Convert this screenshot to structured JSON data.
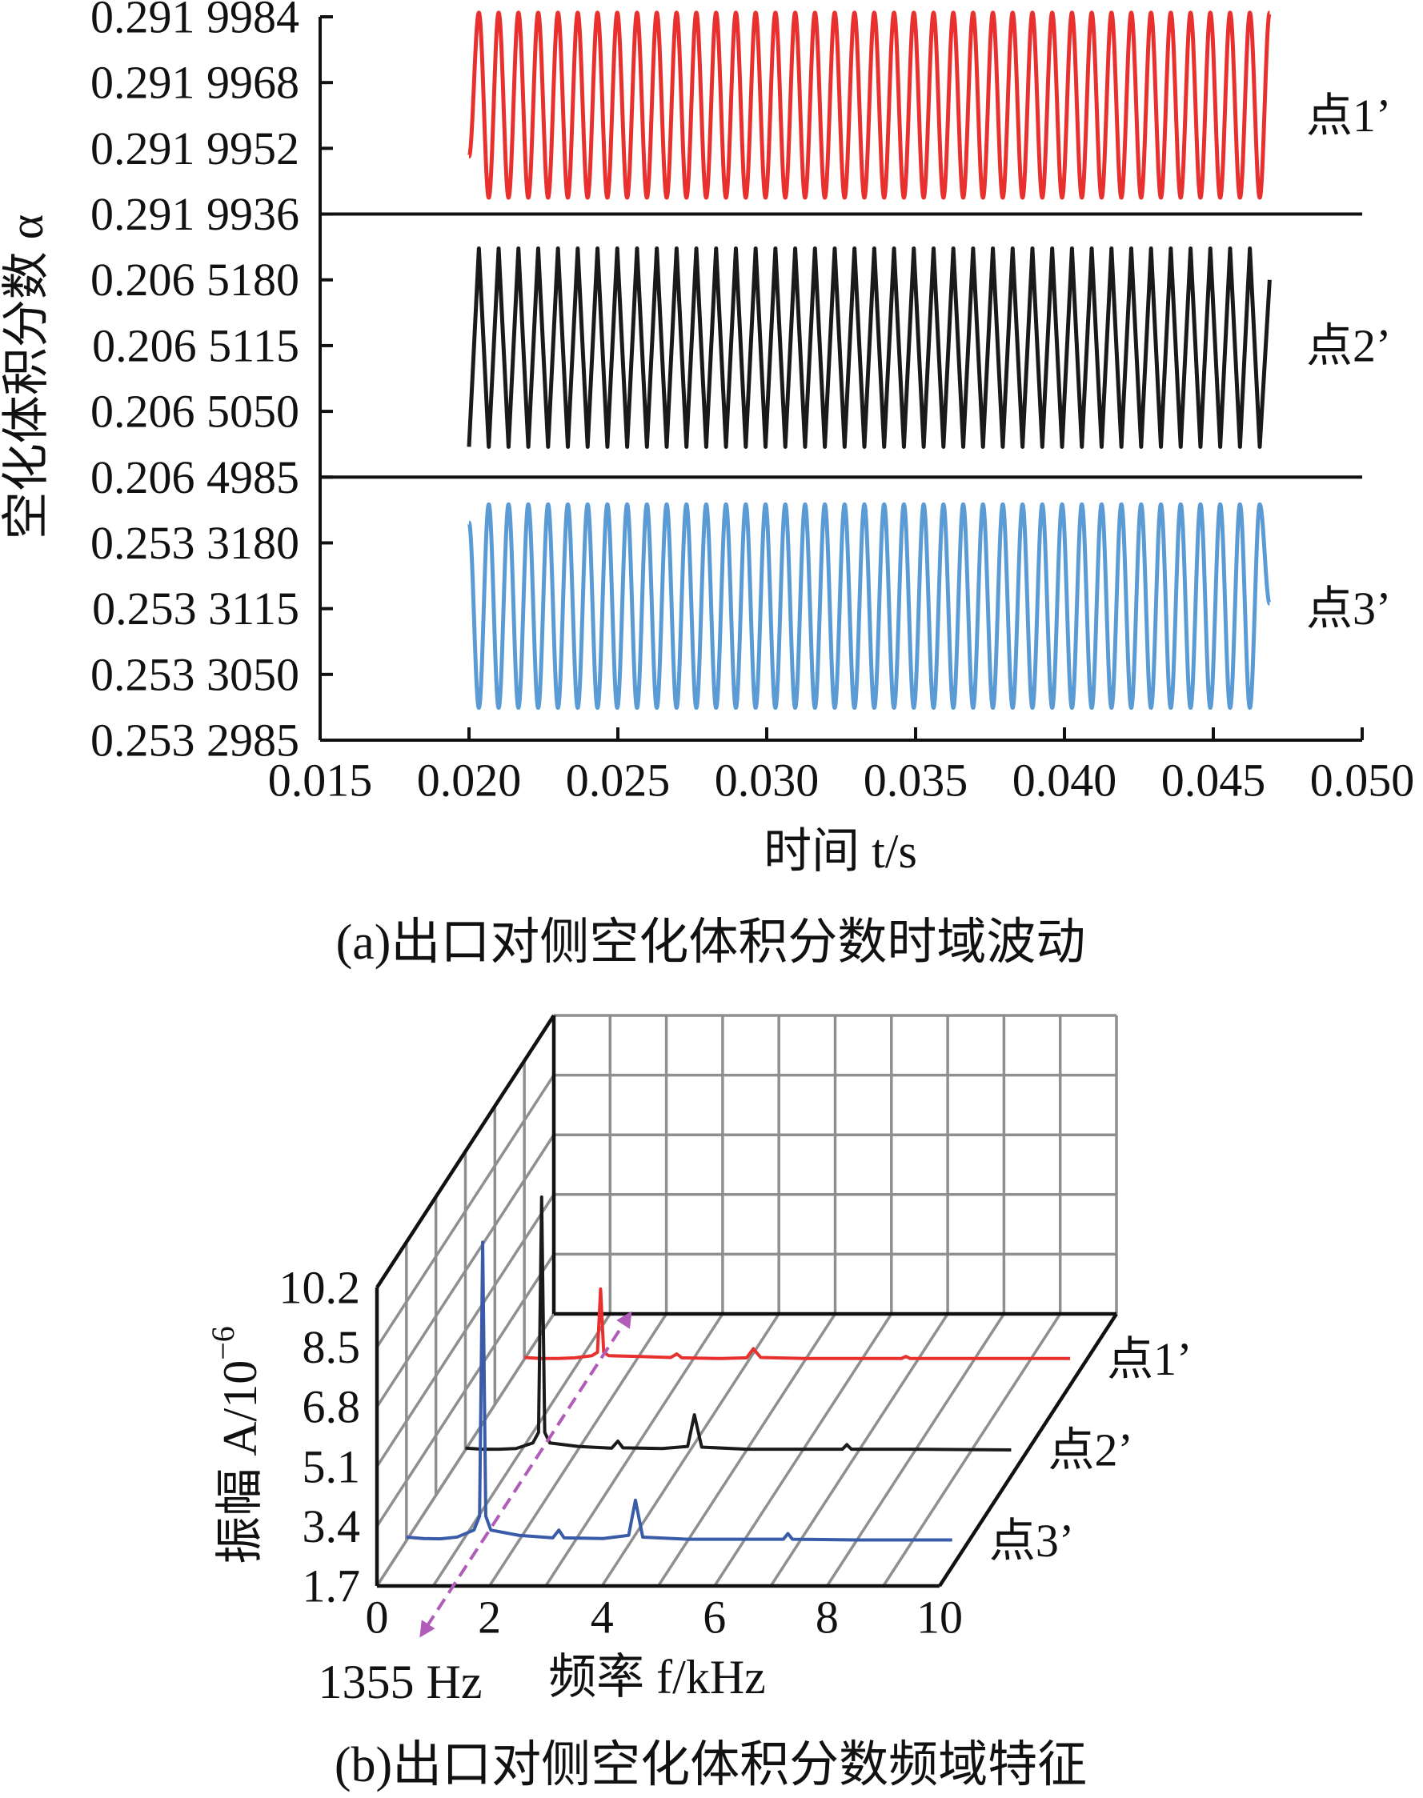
{
  "chart_data": [
    {
      "type": "stacked-line",
      "x": [
        0.02,
        0.020332,
        0.020664,
        0.020996,
        0.021328,
        0.02166,
        0.021992,
        0.022324,
        0.022656,
        0.022988,
        0.02332,
        0.023652,
        0.023984,
        0.024316,
        0.024648,
        0.02498,
        0.025312,
        0.025644,
        0.025976,
        0.026308,
        0.02664,
        0.026972,
        0.027304,
        0.027636,
        0.027968,
        0.0283,
        0.028632,
        0.028964,
        0.029296,
        0.029628,
        0.02996,
        0.030292,
        0.030624,
        0.030956,
        0.031288,
        0.03162,
        0.031952,
        0.032284,
        0.032616,
        0.032948,
        0.03328,
        0.033612,
        0.033944,
        0.034276,
        0.034608,
        0.03494,
        0.035272,
        0.035604,
        0.035936,
        0.036268,
        0.0366,
        0.036932,
        0.037264,
        0.037596,
        0.037928,
        0.03826,
        0.038592,
        0.038924,
        0.039256,
        0.039588,
        0.03992,
        0.040252,
        0.040584,
        0.040916,
        0.041248,
        0.04158,
        0.041912,
        0.042244,
        0.042576,
        0.042908,
        0.04324,
        0.043572,
        0.043904,
        0.044236,
        0.044568,
        0.0449,
        0.045232,
        0.045564,
        0.045896,
        0.046228,
        0.04656,
        0.046892
      ],
      "xlim": [
        0.015,
        0.05
      ],
      "xticks": [
        {
          "value": 0.015,
          "label": "0.015"
        },
        {
          "value": 0.02,
          "label": "0.020"
        },
        {
          "value": 0.025,
          "label": "0.025"
        },
        {
          "value": 0.03,
          "label": "0.030"
        },
        {
          "value": 0.035,
          "label": "0.035"
        },
        {
          "value": 0.04,
          "label": "0.040"
        },
        {
          "value": 0.045,
          "label": "0.045"
        },
        {
          "value": 0.05,
          "label": "0.050"
        }
      ],
      "xlabel": "时间 t/s",
      "ylabel": "空化体积分数 α",
      "caption": "(a)出口对侧空化体积分数时域波动",
      "panels": [
        {
          "ylim": [
            0.2919936,
            0.2919984
          ],
          "yticks": [
            {
              "value": 0.2919936,
              "label": "0.291 9936"
            },
            {
              "value": 0.2919952,
              "label": "0.291 9952"
            },
            {
              "value": 0.2919968,
              "label": "0.291 9968"
            },
            {
              "value": 0.2919984,
              "label": "0.291 9984"
            }
          ],
          "series": [
            {
              "name": "点1’",
              "color": "#e8312f",
              "curve": "smooth",
              "values": [
                0.291995,
                0.2919985,
                0.291994,
                0.2919985,
                0.291994,
                0.2919985,
                0.291994,
                0.2919985,
                0.291994,
                0.2919985,
                0.291994,
                0.2919985,
                0.291994,
                0.2919985,
                0.291994,
                0.2919985,
                0.291994,
                0.2919985,
                0.291994,
                0.2919985,
                0.291994,
                0.2919985,
                0.291994,
                0.2919985,
                0.291994,
                0.2919985,
                0.291994,
                0.2919985,
                0.291994,
                0.2919985,
                0.291994,
                0.2919985,
                0.291994,
                0.2919985,
                0.291994,
                0.2919985,
                0.291994,
                0.2919985,
                0.291994,
                0.2919985,
                0.291994,
                0.2919985,
                0.291994,
                0.2919985,
                0.291994,
                0.2919985,
                0.291994,
                0.2919985,
                0.291994,
                0.2919985,
                0.291994,
                0.2919985,
                0.291994,
                0.2919985,
                0.291994,
                0.2919985,
                0.291994,
                0.2919985,
                0.291994,
                0.2919985,
                0.291994,
                0.2919985,
                0.291994,
                0.2919985,
                0.291994,
                0.2919985,
                0.291994,
                0.2919985,
                0.291994,
                0.2919985,
                0.291994,
                0.2919985,
                0.291994,
                0.2919985,
                0.291994,
                0.2919985,
                0.291994,
                0.2919985,
                0.291994,
                0.2919985,
                0.291994,
                0.2919985
              ]
            }
          ]
        },
        {
          "ylim": [
            0.2064985,
            0.2065245
          ],
          "yticks": [
            {
              "value": 0.2064985,
              "label": "0.206 4985"
            },
            {
              "value": 0.206505,
              "label": "0.206 5050"
            },
            {
              "value": 0.2065115,
              "label": "0.206 5115"
            },
            {
              "value": 0.206518,
              "label": "0.206 5180"
            }
          ],
          "series": [
            {
              "name": "点2’",
              "color": "#1a1a1a",
              "curve": "straight",
              "values": [
                0.2065015,
                0.2065211,
                0.2065015,
                0.2065211,
                0.2065015,
                0.2065211,
                0.2065015,
                0.2065211,
                0.2065015,
                0.2065211,
                0.2065015,
                0.2065211,
                0.2065015,
                0.2065211,
                0.2065015,
                0.2065211,
                0.2065015,
                0.2065211,
                0.2065015,
                0.2065211,
                0.2065015,
                0.2065211,
                0.2065015,
                0.2065211,
                0.2065015,
                0.2065211,
                0.2065015,
                0.2065211,
                0.2065015,
                0.2065211,
                0.2065015,
                0.2065211,
                0.2065015,
                0.2065211,
                0.2065015,
                0.2065211,
                0.2065015,
                0.2065211,
                0.2065015,
                0.2065211,
                0.2065015,
                0.2065211,
                0.2065015,
                0.2065211,
                0.2065015,
                0.2065211,
                0.2065015,
                0.2065211,
                0.2065015,
                0.2065211,
                0.2065015,
                0.2065211,
                0.2065015,
                0.2065211,
                0.2065015,
                0.2065211,
                0.2065015,
                0.2065211,
                0.2065015,
                0.2065211,
                0.2065015,
                0.2065211,
                0.2065015,
                0.2065211,
                0.2065015,
                0.2065211,
                0.2065015,
                0.2065211,
                0.2065015,
                0.2065211,
                0.2065015,
                0.2065211,
                0.2065015,
                0.2065211,
                0.2065015,
                0.2065211,
                0.2065015,
                0.2065211,
                0.2065015,
                0.2065211,
                0.2065015,
                0.206518
              ]
            }
          ]
        },
        {
          "ylim": [
            0.2532985,
            0.2533245
          ],
          "yticks": [
            {
              "value": 0.2532985,
              "label": "0.253 2985"
            },
            {
              "value": 0.253305,
              "label": "0.253 3050"
            },
            {
              "value": 0.2533115,
              "label": "0.253 3115"
            },
            {
              "value": 0.253318,
              "label": "0.253 3180"
            }
          ],
          "series": [
            {
              "name": "点3’",
              "color": "#5b9bd5",
              "curve": "smooth",
              "values": [
                0.25332,
                0.2533017,
                0.2533218,
                0.2533017,
                0.2533218,
                0.2533017,
                0.2533218,
                0.2533017,
                0.2533218,
                0.2533017,
                0.2533218,
                0.2533017,
                0.2533218,
                0.2533017,
                0.2533218,
                0.2533017,
                0.2533218,
                0.2533017,
                0.2533218,
                0.2533017,
                0.2533218,
                0.2533017,
                0.2533218,
                0.2533017,
                0.2533218,
                0.2533017,
                0.2533218,
                0.2533017,
                0.2533218,
                0.2533017,
                0.2533218,
                0.2533017,
                0.2533218,
                0.2533017,
                0.2533218,
                0.2533017,
                0.2533218,
                0.2533017,
                0.2533218,
                0.2533017,
                0.2533218,
                0.2533017,
                0.2533218,
                0.2533017,
                0.2533218,
                0.2533017,
                0.2533218,
                0.2533017,
                0.2533218,
                0.2533017,
                0.2533218,
                0.2533017,
                0.2533218,
                0.2533017,
                0.2533218,
                0.2533017,
                0.2533218,
                0.2533017,
                0.2533218,
                0.2533017,
                0.2533218,
                0.2533017,
                0.2533218,
                0.2533017,
                0.2533218,
                0.2533017,
                0.2533218,
                0.2533017,
                0.2533218,
                0.2533017,
                0.2533218,
                0.2533017,
                0.2533218,
                0.2533017,
                0.2533218,
                0.2533017,
                0.2533218,
                0.2533017,
                0.2533218,
                0.2533017,
                0.2533218,
                0.253312
              ]
            }
          ]
        }
      ]
    },
    {
      "type": "waterfall",
      "x": [
        0,
        0.3,
        0.6,
        0.9,
        1.2,
        1.3,
        1.355,
        1.41,
        1.5,
        2.0,
        2.6,
        2.71,
        2.8,
        3.5,
        3.95,
        4.07,
        4.2,
        5.0,
        6.7,
        6.78,
        6.86,
        8.0,
        9.7
      ],
      "xlim": [
        0,
        10
      ],
      "xticks": [
        0,
        2,
        4,
        6,
        8,
        10
      ],
      "ylim": [
        1.7,
        10.2
      ],
      "yticks": [
        1.7,
        3.4,
        5.1,
        6.8,
        8.5,
        10.2
      ],
      "xlabel": "频率 f/kHz",
      "ylabel": "振幅 A/10",
      "ylabel_exponent": "−6",
      "annotation": {
        "text": "1355 Hz",
        "x": 1.355
      },
      "caption": "(b)出口对侧空化体积分数频域特征",
      "series": [
        {
          "name": "点1’",
          "color": "#e8312f",
          "values": [
            1.75,
            1.72,
            1.72,
            1.74,
            1.8,
            1.9,
            3.7,
            1.9,
            1.8,
            1.78,
            1.75,
            1.85,
            1.74,
            1.72,
            1.74,
            2.0,
            1.75,
            1.72,
            1.72,
            1.78,
            1.72,
            1.72,
            1.72
          ]
        },
        {
          "name": "点2’",
          "color": "#1a1a1a",
          "values": [
            1.75,
            1.72,
            1.72,
            1.74,
            1.9,
            2.2,
            8.9,
            2.2,
            1.9,
            1.8,
            1.75,
            1.95,
            1.76,
            1.74,
            1.8,
            2.7,
            1.78,
            1.72,
            1.72,
            1.85,
            1.72,
            1.72,
            1.7
          ]
        },
        {
          "name": "点3’",
          "color": "#3a5ba8",
          "values": [
            1.8,
            1.76,
            1.75,
            1.8,
            2.0,
            2.4,
            10.2,
            2.4,
            2.0,
            1.85,
            1.78,
            2.0,
            1.78,
            1.76,
            1.85,
            2.85,
            1.8,
            1.74,
            1.74,
            1.9,
            1.74,
            1.72,
            1.72
          ]
        }
      ]
    }
  ]
}
